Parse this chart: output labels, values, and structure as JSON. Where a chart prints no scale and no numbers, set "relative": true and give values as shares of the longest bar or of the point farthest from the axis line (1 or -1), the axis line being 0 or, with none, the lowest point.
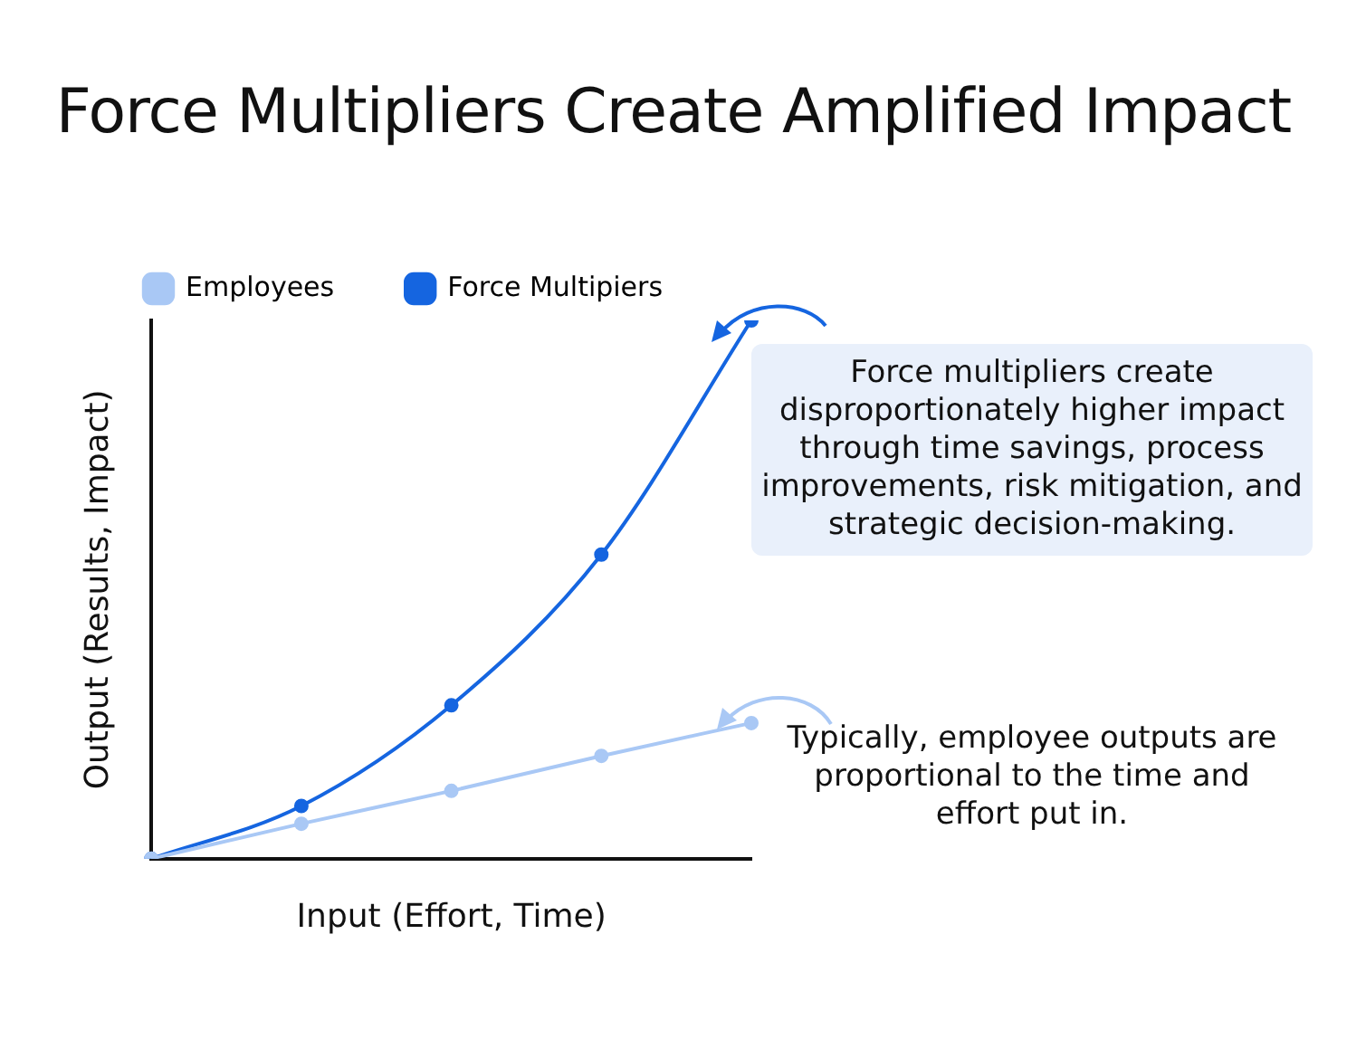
{
  "chart_data": {
    "type": "line",
    "title": "Force Multipliers Create Amplified Impact",
    "xlabel": "Input (Effort, Time)",
    "ylabel": "Output (Results, Impact)",
    "relative": true,
    "categories": [
      null,
      null,
      null,
      null,
      null
    ],
    "series": [
      {
        "name": "Employees",
        "color": "#a9c8f5",
        "values": [
          0,
          0.065,
          0.126,
          0.191,
          0.252
        ]
      },
      {
        "name": "Force Multipiers",
        "color": "#1565e0",
        "values": [
          0,
          0.098,
          0.285,
          0.565,
          1
        ]
      }
    ],
    "annotations": [
      "Force multipliers create disproportionately higher impact through time savings, process improvements, risk mitigation, and strategic decision-making.",
      "Typically, employee outputs are proportional to the time and effort put in."
    ],
    "legend": "top left",
    "marker": "circle",
    "line_style": "solid",
    "grid": false
  }
}
